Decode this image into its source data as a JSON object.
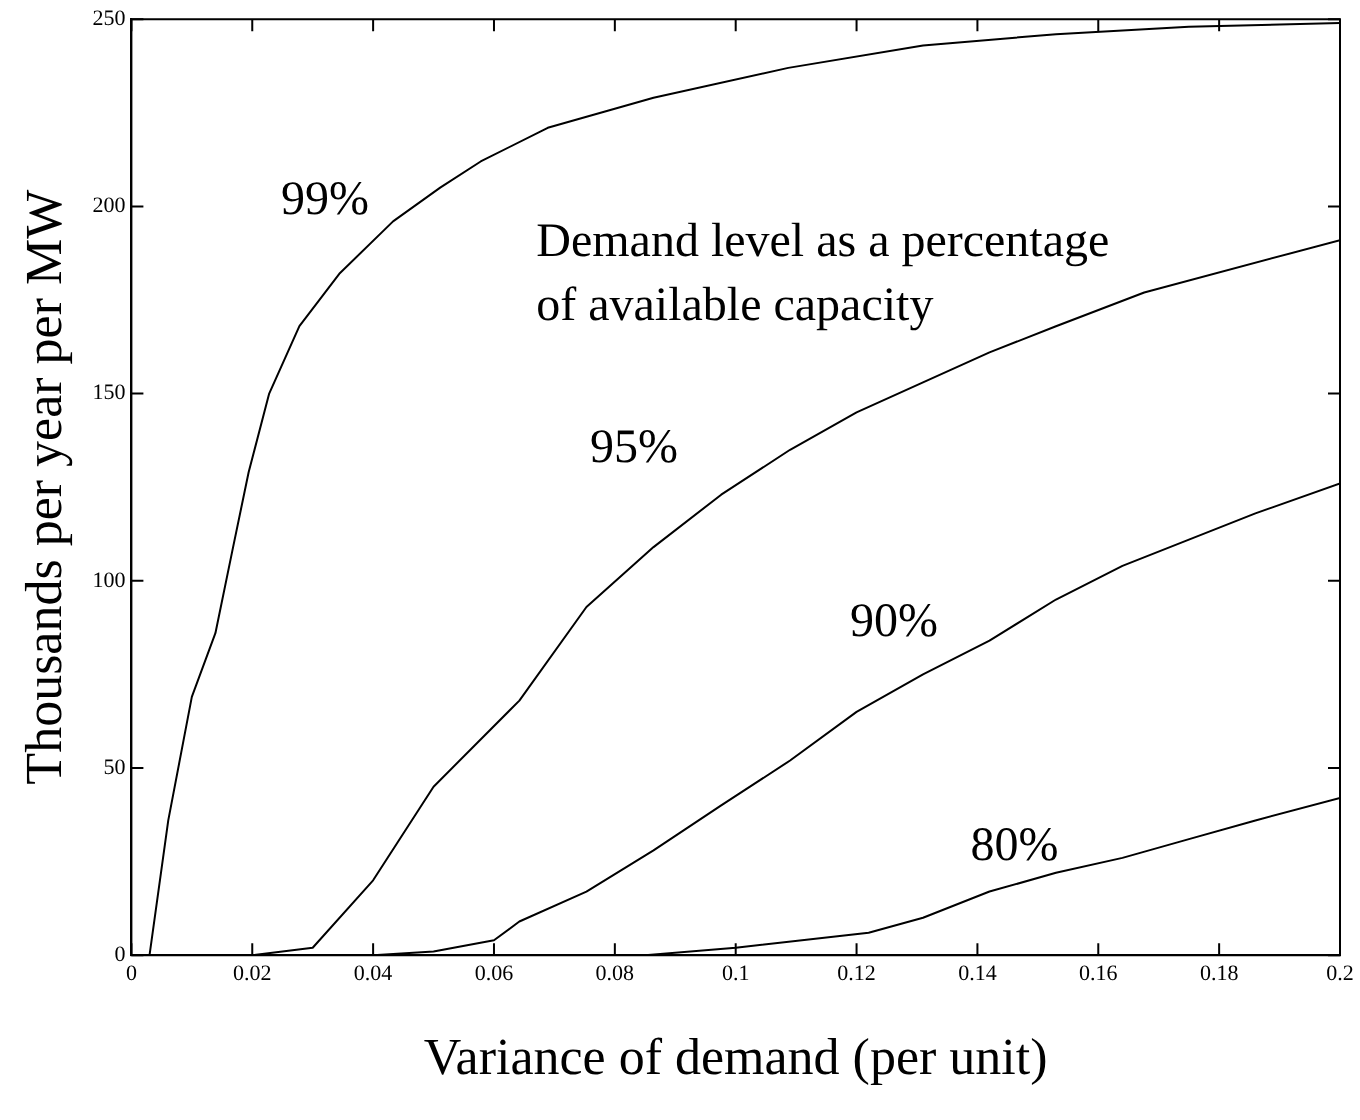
{
  "chart_data": {
    "type": "line",
    "xlabel": "Variance of demand (per unit)",
    "ylabel": "Thousands per year per MW",
    "xlim": [
      0,
      0.2
    ],
    "xticks": [
      0,
      0.02,
      0.04,
      0.06,
      0.08,
      0.1,
      0.12,
      0.14,
      0.16,
      0.18,
      0.2
    ],
    "ylim": [
      0,
      250
    ],
    "yticks": [
      0,
      50,
      100,
      150,
      200,
      250
    ],
    "grid": false,
    "legend": false,
    "marker": "none",
    "line_style": "solid",
    "series": [
      {
        "name": "99%",
        "color": "#000000",
        "x": [
          0,
          0.003,
          0.0061,
          0.01,
          0.0139,
          0.0167,
          0.0194,
          0.0228,
          0.0278,
          0.0344,
          0.0433,
          0.0511,
          0.0578,
          0.0689,
          0.0864,
          0.1087,
          0.131,
          0.153,
          0.175,
          0.2
        ],
        "values": [
          0,
          0,
          36,
          69,
          86,
          108,
          129,
          150,
          168,
          182,
          196,
          205,
          212,
          221,
          229,
          237,
          243,
          246,
          248,
          249
        ]
      },
      {
        "name": "95%",
        "color": "#000000",
        "x": [
          0,
          0.02,
          0.03,
          0.04,
          0.05,
          0.0642,
          0.0753,
          0.0864,
          0.0976,
          0.109,
          0.12,
          0.131,
          0.142,
          0.153,
          0.1676,
          0.2
        ],
        "values": [
          0,
          0,
          2,
          20,
          45,
          68,
          93,
          109,
          123,
          135,
          145,
          153,
          161,
          168,
          177,
          191
        ]
      },
      {
        "name": "90%",
        "color": "#000000",
        "x": [
          0,
          0.04,
          0.05,
          0.06,
          0.0642,
          0.0753,
          0.0864,
          0.0976,
          0.109,
          0.12,
          0.131,
          0.142,
          0.153,
          0.164,
          0.175,
          0.186,
          0.2
        ],
        "values": [
          0,
          0,
          1,
          4,
          9,
          17,
          28,
          40,
          52,
          65,
          75,
          84,
          95,
          104,
          111,
          118,
          126
        ]
      },
      {
        "name": "80%",
        "color": "#000000",
        "x": [
          0,
          0.085,
          0.1,
          0.122,
          0.131,
          0.142,
          0.153,
          0.164,
          0.175,
          0.186,
          0.2
        ],
        "values": [
          0,
          0,
          2,
          6,
          10,
          17,
          22,
          26,
          31,
          36,
          42
        ]
      }
    ],
    "annotations": [
      "Demand level as a percentage\nof available capacity"
    ]
  }
}
